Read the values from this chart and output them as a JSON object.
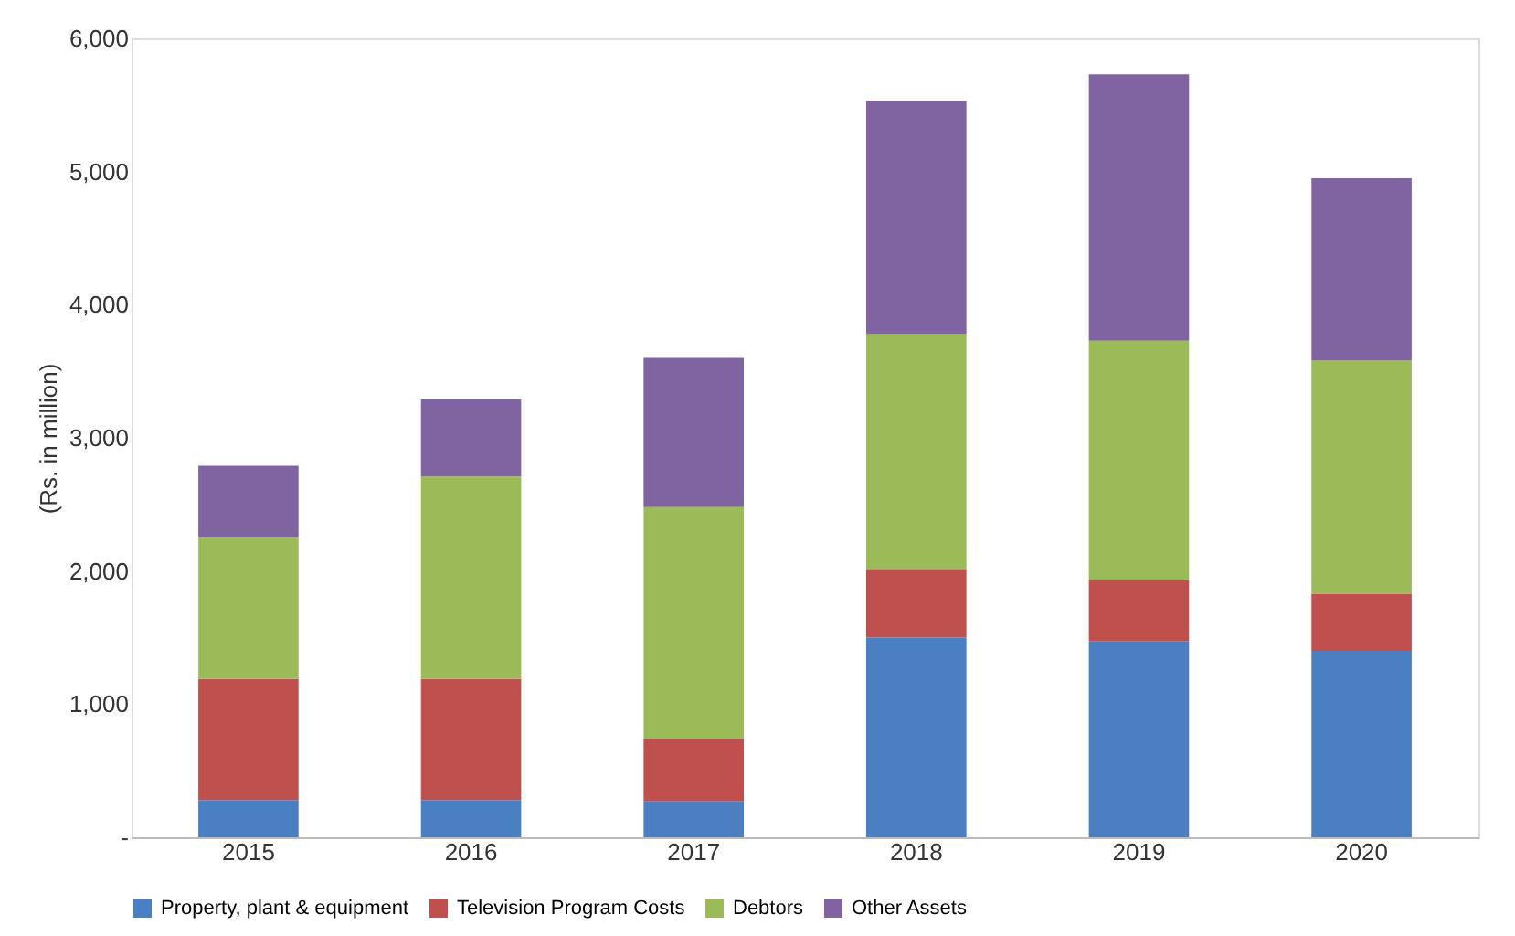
{
  "chart_data": {
    "type": "bar",
    "stacked": true,
    "ylabel": "(Rs. in million)",
    "categories": [
      "2015",
      "2016",
      "2017",
      "2018",
      "2019",
      "2020"
    ],
    "series": [
      {
        "name": "Property, plant & equipment",
        "color": "#4a7fc1",
        "values": [
          280,
          280,
          270,
          1500,
          1470,
          1400
        ]
      },
      {
        "name": "Television Program Costs",
        "color": "#c0504d",
        "values": [
          910,
          910,
          470,
          510,
          460,
          430
        ]
      },
      {
        "name": "Debtors",
        "color": "#9bbb59",
        "values": [
          1060,
          1520,
          1740,
          1770,
          1800,
          1750
        ]
      },
      {
        "name": "Other Assets",
        "color": "#8064a2",
        "values": [
          540,
          580,
          1120,
          1750,
          2000,
          1370
        ]
      }
    ],
    "ylim": [
      0,
      6000
    ],
    "yticks": [
      {
        "value": 0,
        "label": "-"
      },
      {
        "value": 1000,
        "label": "1,000"
      },
      {
        "value": 2000,
        "label": "2,000"
      },
      {
        "value": 3000,
        "label": "3,000"
      },
      {
        "value": 4000,
        "label": "4,000"
      },
      {
        "value": 5000,
        "label": "5,000"
      },
      {
        "value": 6000,
        "label": "6,000"
      }
    ],
    "grid": false,
    "legend": "bottom"
  }
}
